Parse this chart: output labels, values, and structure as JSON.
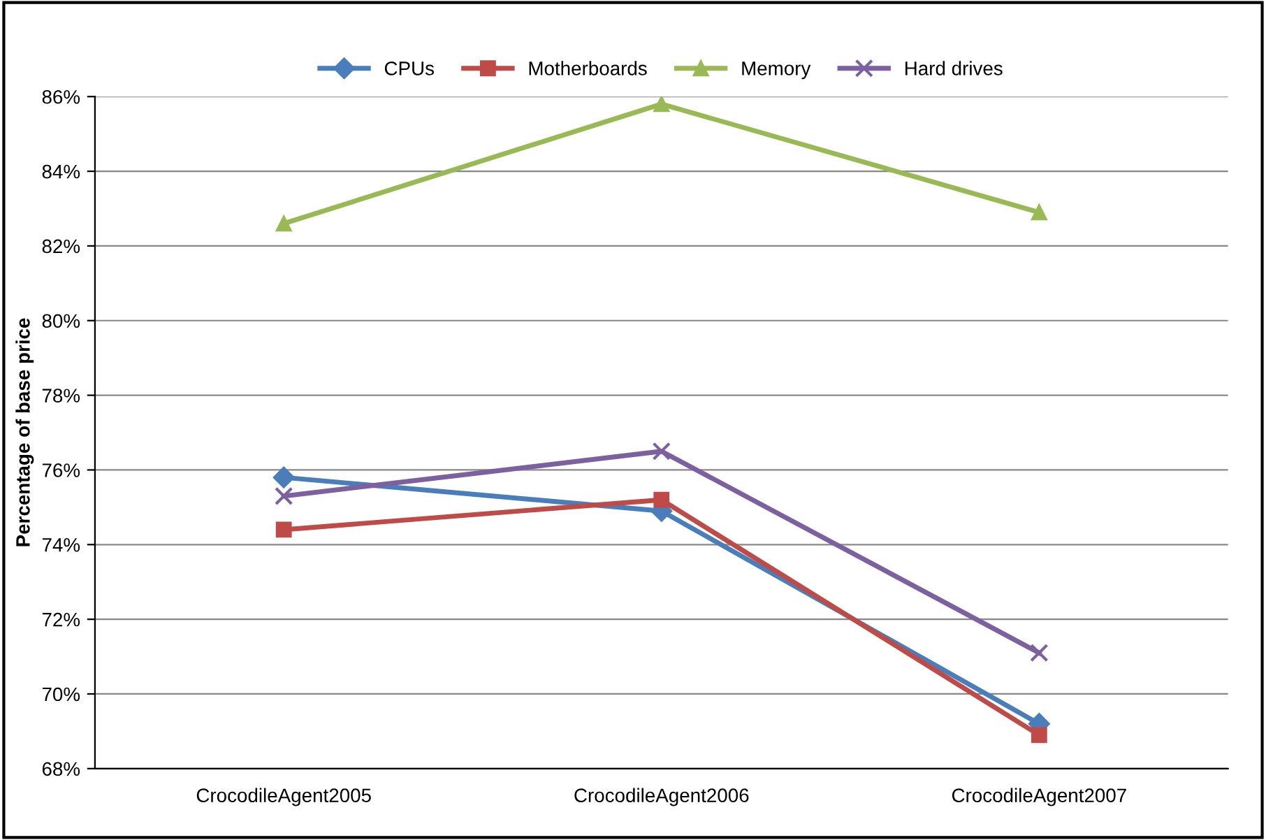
{
  "chart_data": {
    "type": "line",
    "ylabel": "Percentage of base price",
    "categories": [
      "CrocodileAgent2005",
      "CrocodileAgent2006",
      "CrocodileAgent2007"
    ],
    "series": [
      {
        "name": "CPUs",
        "color": "#4a7ebb",
        "marker": "diamond",
        "values": [
          75.8,
          74.9,
          69.2
        ]
      },
      {
        "name": "Motherboards",
        "color": "#be4b48",
        "marker": "square",
        "values": [
          74.4,
          75.2,
          68.9
        ]
      },
      {
        "name": "Memory",
        "color": "#98b954",
        "marker": "triangle",
        "values": [
          82.6,
          85.8,
          82.9
        ]
      },
      {
        "name": "Hard drives",
        "color": "#7d60a0",
        "marker": "cross",
        "values": [
          75.3,
          76.5,
          71.1
        ]
      }
    ],
    "ylim": [
      68,
      86
    ],
    "yticks": [
      {
        "value": 68,
        "label": "68%"
      },
      {
        "value": 70,
        "label": "70%"
      },
      {
        "value": 72,
        "label": "72%"
      },
      {
        "value": 74,
        "label": "74%"
      },
      {
        "value": 76,
        "label": "76%"
      },
      {
        "value": 78,
        "label": "78%"
      },
      {
        "value": 80,
        "label": "80%"
      },
      {
        "value": 82,
        "label": "82%"
      },
      {
        "value": 84,
        "label": "84%"
      },
      {
        "value": 86,
        "label": "86%"
      }
    ],
    "grid": "y",
    "legend": "top",
    "line_style": "solid"
  }
}
